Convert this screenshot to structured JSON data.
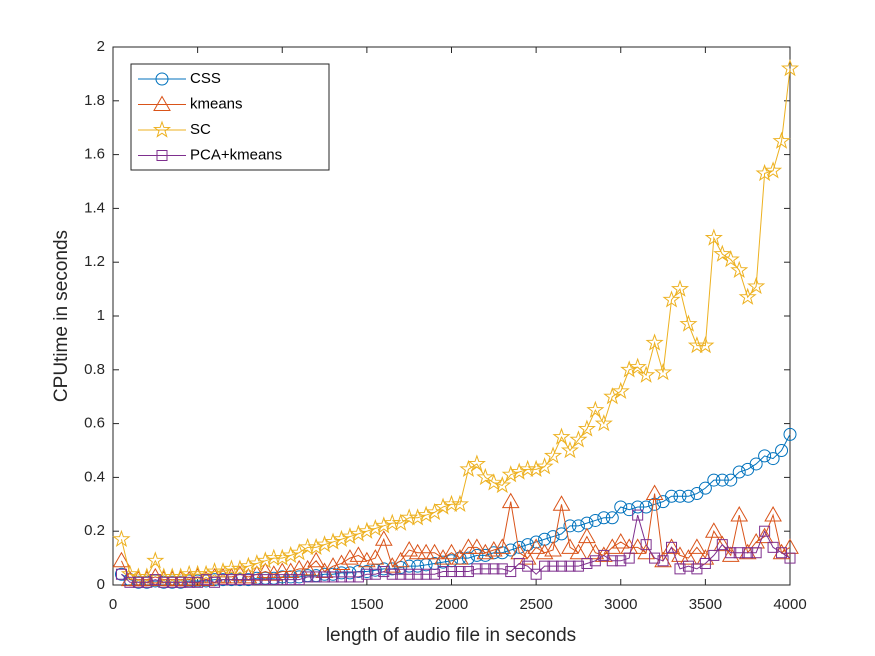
{
  "chart_data": {
    "type": "line",
    "xlabel": "length of audio file in seconds",
    "ylabel": "CPUtime in seconds",
    "x": [
      50,
      100,
      150,
      200,
      250,
      300,
      350,
      400,
      450,
      500,
      550,
      600,
      650,
      700,
      750,
      800,
      850,
      900,
      950,
      1000,
      1050,
      1100,
      1150,
      1200,
      1250,
      1300,
      1350,
      1400,
      1450,
      1500,
      1550,
      1600,
      1650,
      1700,
      1750,
      1800,
      1850,
      1900,
      1950,
      2000,
      2050,
      2100,
      2150,
      2200,
      2250,
      2300,
      2350,
      2400,
      2450,
      2500,
      2550,
      2600,
      2650,
      2700,
      2750,
      2800,
      2850,
      2900,
      2950,
      3000,
      3050,
      3100,
      3150,
      3200,
      3250,
      3300,
      3350,
      3400,
      3450,
      3500,
      3550,
      3600,
      3650,
      3700,
      3750,
      3800,
      3850,
      3900,
      3950,
      4000
    ],
    "series": [
      {
        "name": "CSS",
        "color": "#0072BD",
        "marker": "circle",
        "values": [
          0.04,
          0.02,
          0.01,
          0.01,
          0.015,
          0.01,
          0.01,
          0.01,
          0.015,
          0.015,
          0.015,
          0.02,
          0.02,
          0.02,
          0.02,
          0.02,
          0.025,
          0.025,
          0.025,
          0.03,
          0.03,
          0.03,
          0.035,
          0.035,
          0.04,
          0.04,
          0.045,
          0.045,
          0.05,
          0.05,
          0.055,
          0.06,
          0.06,
          0.065,
          0.07,
          0.07,
          0.075,
          0.08,
          0.085,
          0.09,
          0.1,
          0.1,
          0.11,
          0.11,
          0.12,
          0.12,
          0.13,
          0.14,
          0.15,
          0.16,
          0.17,
          0.18,
          0.19,
          0.22,
          0.22,
          0.23,
          0.24,
          0.25,
          0.25,
          0.29,
          0.28,
          0.29,
          0.29,
          0.3,
          0.31,
          0.33,
          0.33,
          0.33,
          0.34,
          0.36,
          0.39,
          0.39,
          0.39,
          0.42,
          0.43,
          0.45,
          0.48,
          0.47,
          0.5,
          0.56
        ]
      },
      {
        "name": "kmeans",
        "color": "#D95319",
        "marker": "triangle",
        "values": [
          0.09,
          0.02,
          0.02,
          0.02,
          0.03,
          0.02,
          0.02,
          0.02,
          0.02,
          0.03,
          0.02,
          0.03,
          0.03,
          0.03,
          0.04,
          0.03,
          0.04,
          0.05,
          0.04,
          0.05,
          0.05,
          0.06,
          0.06,
          0.09,
          0.05,
          0.07,
          0.08,
          0.1,
          0.11,
          0.09,
          0.1,
          0.17,
          0.07,
          0.09,
          0.13,
          0.12,
          0.12,
          0.12,
          0.1,
          0.12,
          0.1,
          0.14,
          0.14,
          0.12,
          0.13,
          0.14,
          0.31,
          0.12,
          0.1,
          0.14,
          0.12,
          0.13,
          0.3,
          0.14,
          0.12,
          0.18,
          0.12,
          0.11,
          0.14,
          0.16,
          0.14,
          0.14,
          0.12,
          0.34,
          0.09,
          0.14,
          0.11,
          0.1,
          0.14,
          0.1,
          0.2,
          0.15,
          0.11,
          0.26,
          0.12,
          0.16,
          0.18,
          0.26,
          0.12,
          0.14
        ]
      },
      {
        "name": "SC",
        "color": "#EDB120",
        "marker": "star",
        "values": [
          0.17,
          0.04,
          0.03,
          0.03,
          0.09,
          0.03,
          0.03,
          0.03,
          0.04,
          0.04,
          0.04,
          0.05,
          0.05,
          0.06,
          0.06,
          0.07,
          0.08,
          0.09,
          0.1,
          0.1,
          0.11,
          0.12,
          0.14,
          0.14,
          0.15,
          0.16,
          0.17,
          0.18,
          0.19,
          0.2,
          0.21,
          0.22,
          0.23,
          0.23,
          0.25,
          0.25,
          0.26,
          0.27,
          0.29,
          0.3,
          0.3,
          0.43,
          0.45,
          0.4,
          0.38,
          0.37,
          0.41,
          0.42,
          0.43,
          0.43,
          0.44,
          0.48,
          0.55,
          0.5,
          0.54,
          0.58,
          0.65,
          0.6,
          0.7,
          0.72,
          0.8,
          0.81,
          0.78,
          0.9,
          0.79,
          1.06,
          1.1,
          0.97,
          0.89,
          0.89,
          1.29,
          1.23,
          1.21,
          1.17,
          1.07,
          1.11,
          1.53,
          1.54,
          1.65,
          1.92
        ]
      },
      {
        "name": "PCA+kmeans",
        "color": "#7E2F8E",
        "marker": "square",
        "values": [
          0.04,
          0.01,
          0.01,
          0.01,
          0.02,
          0.01,
          0.01,
          0.01,
          0.01,
          0.01,
          0.02,
          0.01,
          0.02,
          0.02,
          0.02,
          0.02,
          0.02,
          0.02,
          0.02,
          0.02,
          0.02,
          0.02,
          0.03,
          0.03,
          0.03,
          0.03,
          0.03,
          0.03,
          0.03,
          0.04,
          0.04,
          0.05,
          0.04,
          0.04,
          0.04,
          0.04,
          0.04,
          0.04,
          0.05,
          0.05,
          0.05,
          0.05,
          0.06,
          0.06,
          0.06,
          0.06,
          0.05,
          0.08,
          0.07,
          0.04,
          0.07,
          0.07,
          0.07,
          0.07,
          0.07,
          0.08,
          0.09,
          0.11,
          0.09,
          0.09,
          0.1,
          0.26,
          0.15,
          0.1,
          0.09,
          0.14,
          0.06,
          0.07,
          0.06,
          0.08,
          0.11,
          0.15,
          0.12,
          0.12,
          0.12,
          0.12,
          0.2,
          0.14,
          0.12,
          0.1
        ]
      }
    ],
    "xlim": [
      0,
      4000
    ],
    "xticks": [
      0,
      500,
      1000,
      1500,
      2000,
      2500,
      3000,
      3500,
      4000
    ],
    "ylim": [
      0,
      2
    ],
    "yticks": [
      0,
      0.2,
      0.4,
      0.6,
      0.8,
      1,
      1.2,
      1.4,
      1.6,
      1.8,
      2
    ],
    "grid": false,
    "legend": "northwest"
  }
}
